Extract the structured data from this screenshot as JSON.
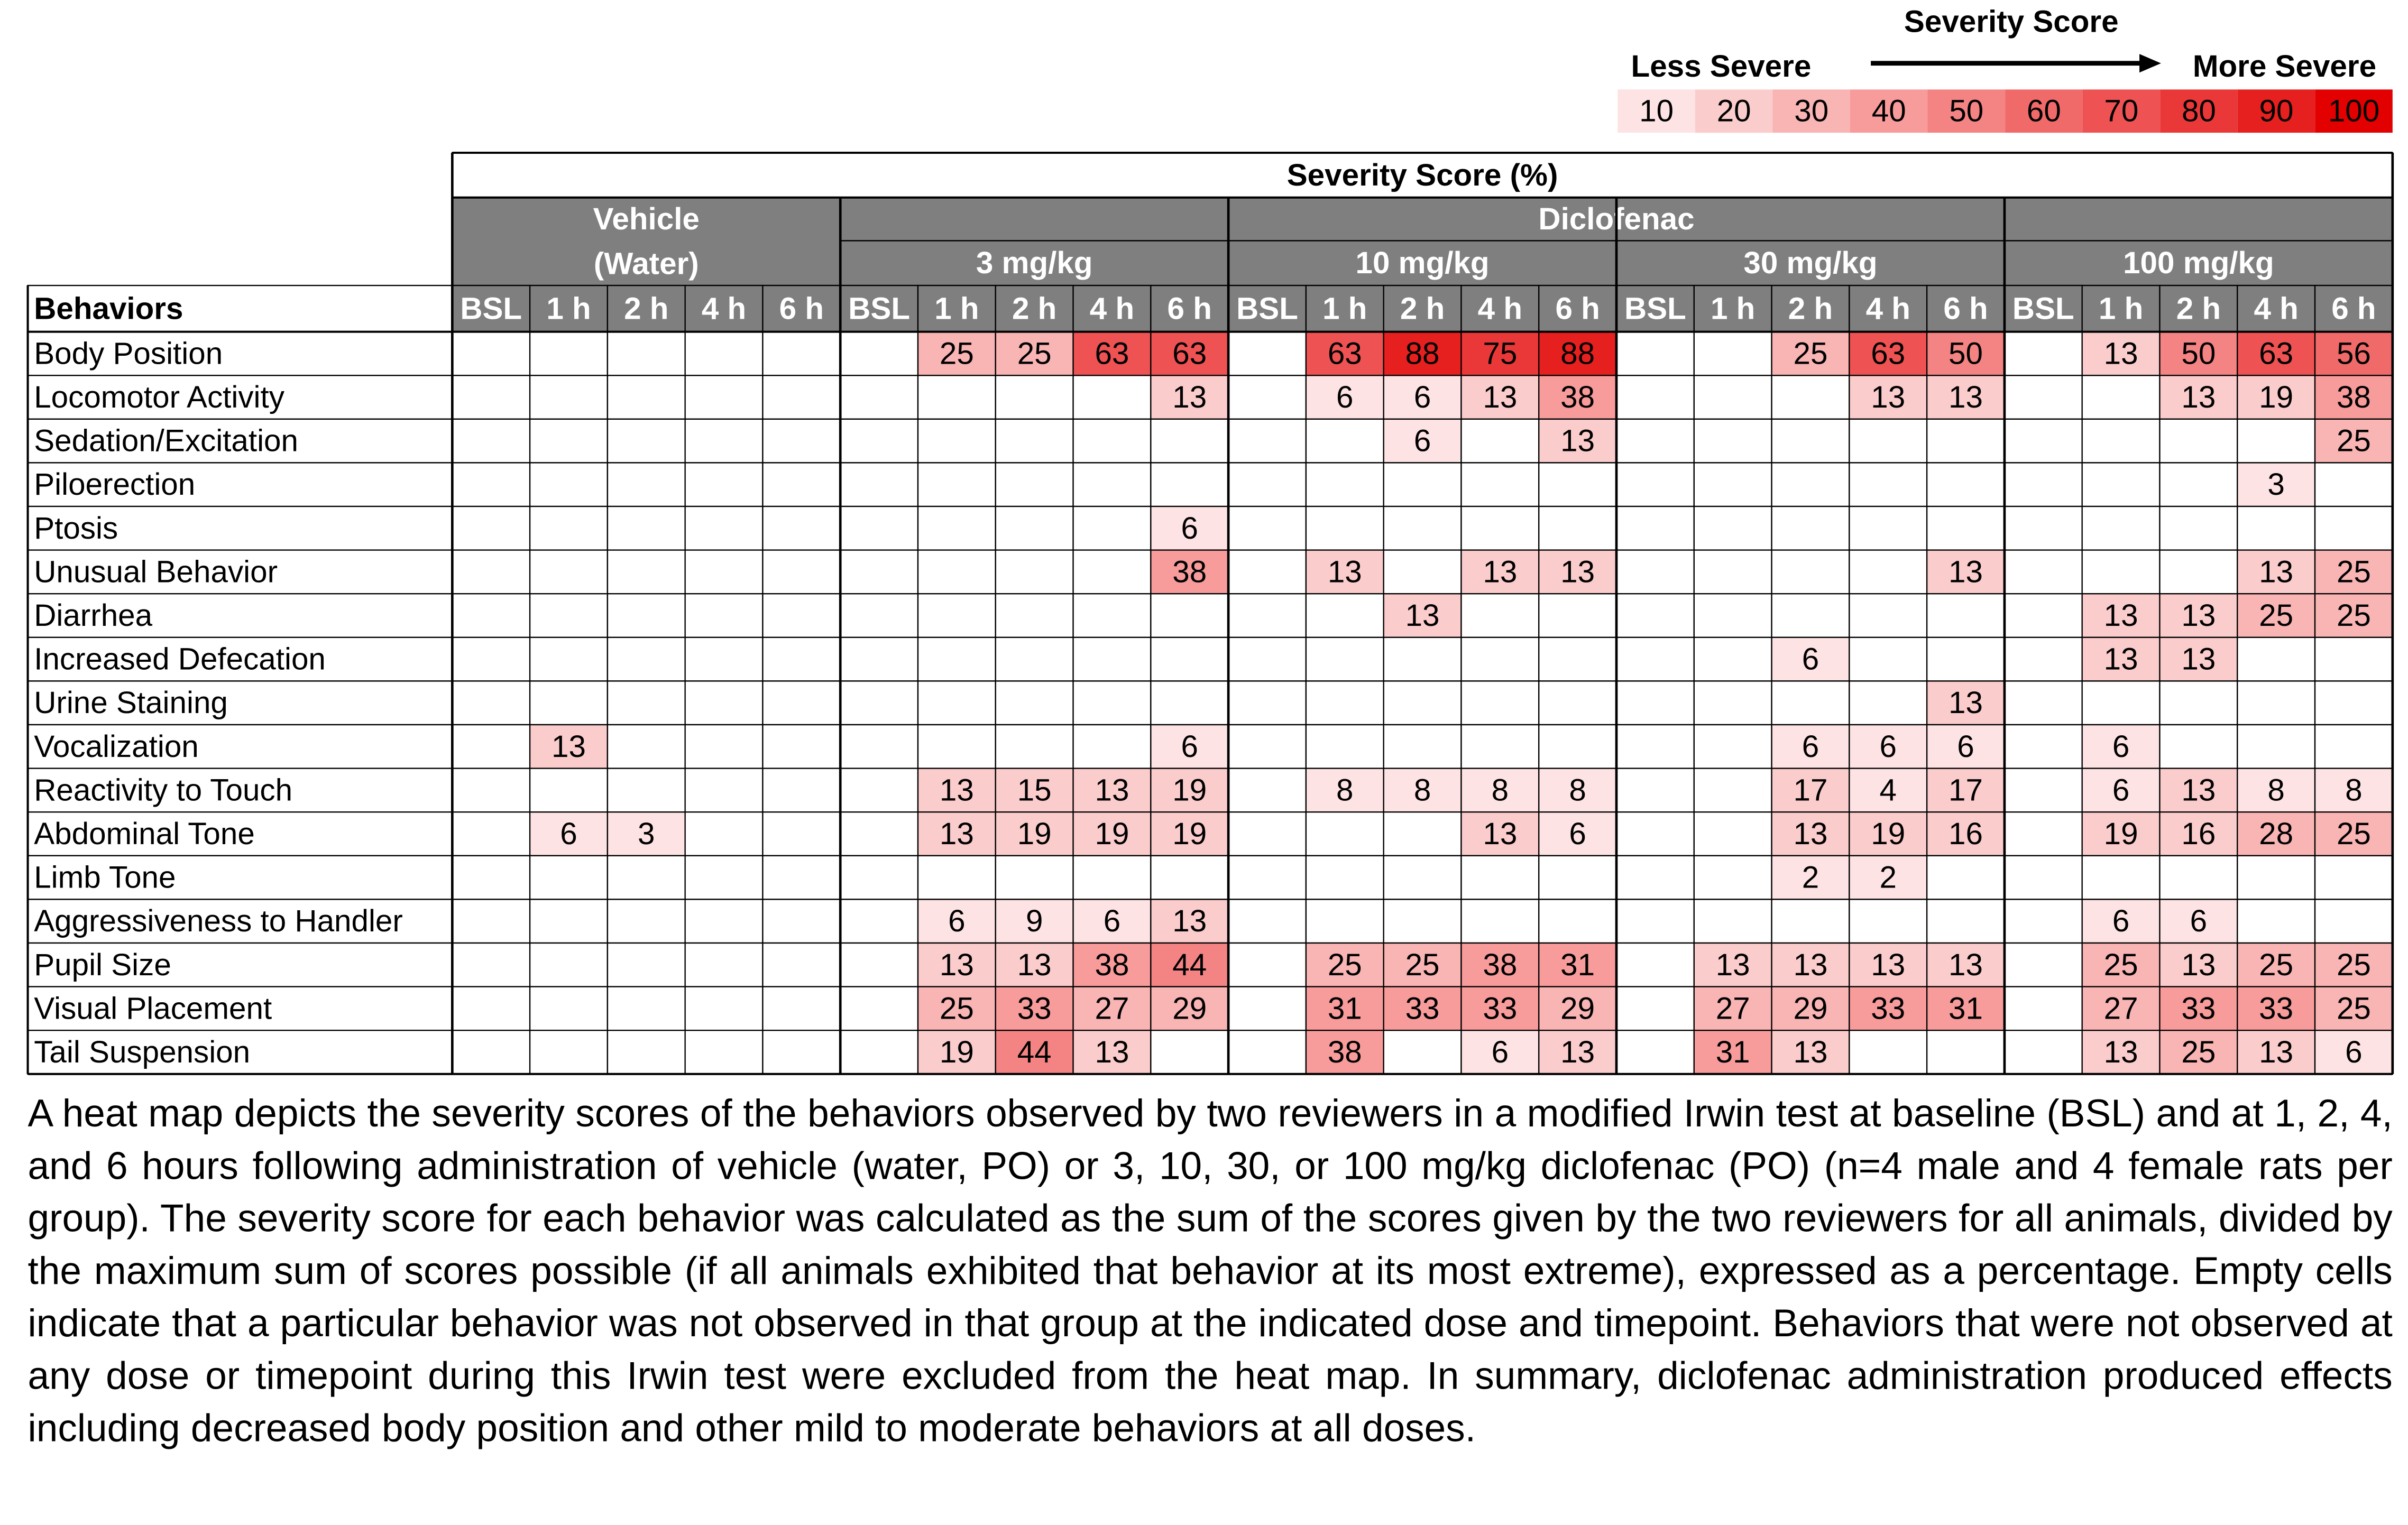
{
  "legend": {
    "title": "Severity Score",
    "low_label": "Less Severe",
    "high_label": "More Severe",
    "levels": [
      10,
      20,
      30,
      40,
      50,
      60,
      70,
      80,
      90,
      100
    ],
    "colors": [
      "#fde3e3",
      "#fbcccc",
      "#f9b4b4",
      "#f79b9b",
      "#f48383",
      "#f16a6a",
      "#ee5252",
      "#ea3838",
      "#e61f1f",
      "#e20000"
    ]
  },
  "table": {
    "title": "Severity Score (%)",
    "row_label_header": "Behaviors",
    "vehicle": {
      "name": "Vehicle",
      "note": "(Water)"
    },
    "drug": {
      "name": "Diclofenac",
      "doses": [
        "3 mg/kg",
        "10 mg/kg",
        "30 mg/kg",
        "100 mg/kg"
      ]
    },
    "timepoints": [
      "BSL",
      "1 h",
      "2 h",
      "4 h",
      "6 h"
    ],
    "rows": [
      {
        "label": "Body Position",
        "values": [
          null,
          null,
          null,
          null,
          null,
          null,
          25,
          25,
          63,
          63,
          null,
          63,
          88,
          75,
          88,
          null,
          null,
          25,
          63,
          50,
          null,
          13,
          50,
          63,
          56
        ]
      },
      {
        "label": "Locomotor Activity",
        "values": [
          null,
          null,
          null,
          null,
          null,
          null,
          null,
          null,
          null,
          13,
          null,
          6,
          6,
          13,
          38,
          null,
          null,
          null,
          13,
          13,
          null,
          null,
          13,
          19,
          38
        ]
      },
      {
        "label": "Sedation/Excitation",
        "values": [
          null,
          null,
          null,
          null,
          null,
          null,
          null,
          null,
          null,
          null,
          null,
          null,
          6,
          null,
          13,
          null,
          null,
          null,
          null,
          null,
          null,
          null,
          null,
          null,
          25
        ]
      },
      {
        "label": "Piloerection",
        "values": [
          null,
          null,
          null,
          null,
          null,
          null,
          null,
          null,
          null,
          null,
          null,
          null,
          null,
          null,
          null,
          null,
          null,
          null,
          null,
          null,
          null,
          null,
          null,
          3,
          null
        ]
      },
      {
        "label": "Ptosis",
        "values": [
          null,
          null,
          null,
          null,
          null,
          null,
          null,
          null,
          null,
          6,
          null,
          null,
          null,
          null,
          null,
          null,
          null,
          null,
          null,
          null,
          null,
          null,
          null,
          null,
          null
        ]
      },
      {
        "label": "Unusual Behavior",
        "values": [
          null,
          null,
          null,
          null,
          null,
          null,
          null,
          null,
          null,
          38,
          null,
          13,
          null,
          13,
          13,
          null,
          null,
          null,
          null,
          13,
          null,
          null,
          null,
          13,
          25
        ]
      },
      {
        "label": "Diarrhea",
        "values": [
          null,
          null,
          null,
          null,
          null,
          null,
          null,
          null,
          null,
          null,
          null,
          null,
          13,
          null,
          null,
          null,
          null,
          null,
          null,
          null,
          null,
          13,
          13,
          25,
          25
        ]
      },
      {
        "label": "Increased Defecation",
        "values": [
          null,
          null,
          null,
          null,
          null,
          null,
          null,
          null,
          null,
          null,
          null,
          null,
          null,
          null,
          null,
          null,
          null,
          6,
          null,
          null,
          null,
          13,
          13,
          null,
          null
        ]
      },
      {
        "label": "Urine Staining",
        "values": [
          null,
          null,
          null,
          null,
          null,
          null,
          null,
          null,
          null,
          null,
          null,
          null,
          null,
          null,
          null,
          null,
          null,
          null,
          null,
          13,
          null,
          null,
          null,
          null,
          null
        ]
      },
      {
        "label": "Vocalization",
        "values": [
          null,
          13,
          null,
          null,
          null,
          null,
          null,
          null,
          null,
          6,
          null,
          null,
          null,
          null,
          null,
          null,
          null,
          6,
          6,
          6,
          null,
          6,
          null,
          null,
          null
        ]
      },
      {
        "label": "Reactivity to Touch",
        "values": [
          null,
          null,
          null,
          null,
          null,
          null,
          13,
          15,
          13,
          19,
          null,
          8,
          8,
          8,
          8,
          null,
          null,
          17,
          4,
          17,
          null,
          6,
          13,
          8,
          8
        ]
      },
      {
        "label": "Abdominal Tone",
        "values": [
          null,
          6,
          3,
          null,
          null,
          null,
          13,
          19,
          19,
          19,
          null,
          null,
          null,
          13,
          6,
          null,
          null,
          13,
          19,
          16,
          null,
          19,
          16,
          28,
          25
        ]
      },
      {
        "label": "Limb Tone",
        "values": [
          null,
          null,
          null,
          null,
          null,
          null,
          null,
          null,
          null,
          null,
          null,
          null,
          null,
          null,
          null,
          null,
          null,
          2,
          2,
          null,
          null,
          null,
          null,
          null,
          null
        ]
      },
      {
        "label": "Aggressiveness to Handler",
        "values": [
          null,
          null,
          null,
          null,
          null,
          null,
          6,
          9,
          6,
          13,
          null,
          null,
          null,
          null,
          null,
          null,
          null,
          null,
          null,
          null,
          null,
          6,
          6,
          null,
          null
        ]
      },
      {
        "label": "Pupil Size",
        "values": [
          null,
          null,
          null,
          null,
          null,
          null,
          13,
          13,
          38,
          44,
          null,
          25,
          25,
          38,
          31,
          null,
          13,
          13,
          13,
          13,
          null,
          25,
          13,
          25,
          25
        ]
      },
      {
        "label": "Visual Placement",
        "values": [
          null,
          null,
          null,
          null,
          null,
          null,
          25,
          33,
          27,
          29,
          null,
          31,
          33,
          33,
          29,
          null,
          27,
          29,
          33,
          31,
          null,
          27,
          33,
          33,
          25
        ]
      },
      {
        "label": "Tail Suspension",
        "values": [
          null,
          null,
          null,
          null,
          null,
          null,
          19,
          44,
          13,
          null,
          null,
          38,
          null,
          6,
          13,
          null,
          31,
          13,
          null,
          null,
          null,
          13,
          25,
          13,
          6
        ]
      }
    ]
  },
  "caption": "A heat map depicts the severity scores of the behaviors observed by two reviewers in a modified Irwin test at baseline (BSL) and at 1, 2, 4, and 6 hours following administration of vehicle (water, PO) or 3, 10, 30, or 100 mg/kg diclofenac (PO) (n=4 male and 4 female rats per group). The severity score for each behavior was calculated as the sum of the scores given by the two reviewers for all animals, divided by the maximum sum of scores possible (if all animals exhibited that behavior at its most extreme), expressed as a percentage. Empty cells indicate that a particular behavior was not observed in that group at the indicated dose and timepoint. Behaviors that were not observed at any dose or timepoint during this Irwin test were excluded from the heat map. In summary, diclofenac administration produced effects including decreased body position and other mild to moderate behaviors at all doses."
}
